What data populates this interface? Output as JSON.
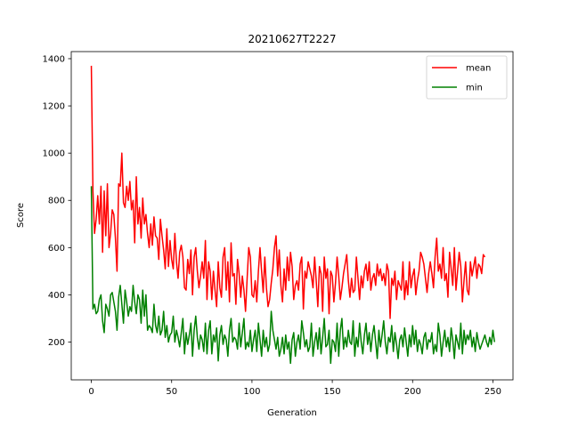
{
  "chart_data": {
    "type": "line",
    "title": "20210627T2227",
    "xlabel": "Generation",
    "ylabel": "Score",
    "xlim": [
      -12.5,
      262.5
    ],
    "ylim": [
      40,
      1430
    ],
    "xticks": [
      0,
      50,
      100,
      150,
      200,
      250
    ],
    "yticks": [
      200,
      400,
      600,
      800,
      1000,
      1200,
      1400
    ],
    "grid": false,
    "legend_position": "top-right",
    "series": [
      {
        "name": "mean",
        "color": "#ff0000",
        "values": [
          1370,
          840,
          660,
          720,
          820,
          700,
          860,
          580,
          840,
          650,
          870,
          600,
          660,
          760,
          740,
          640,
          500,
          870,
          860,
          1000,
          790,
          770,
          860,
          800,
          880,
          760,
          800,
          620,
          900,
          700,
          770,
          640,
          810,
          700,
          740,
          660,
          600,
          700,
          610,
          730,
          650,
          640,
          550,
          720,
          650,
          590,
          510,
          680,
          520,
          630,
          550,
          510,
          660,
          540,
          470,
          580,
          610,
          560,
          430,
          420,
          550,
          490,
          590,
          400,
          560,
          600,
          500,
          430,
          480,
          540,
          470,
          630,
          380,
          540,
          500,
          380,
          500,
          420,
          350,
          540,
          430,
          390,
          560,
          600,
          420,
          540,
          370,
          620,
          480,
          490,
          360,
          550,
          490,
          390,
          480,
          420,
          330,
          470,
          600,
          560,
          400,
          390,
          460,
          370,
          500,
          600,
          500,
          410,
          560,
          430,
          350,
          380,
          450,
          510,
          600,
          650,
          480,
          590,
          440,
          370,
          510,
          420,
          560,
          460,
          580,
          520,
          380,
          440,
          460,
          420,
          530,
          560,
          340,
          500,
          470,
          540,
          510,
          480,
          430,
          560,
          460,
          350,
          520,
          490,
          330,
          560,
          470,
          510,
          320,
          500,
          480,
          370,
          450,
          560,
          480,
          380,
          430,
          490,
          530,
          570,
          460,
          390,
          470,
          410,
          420,
          560,
          470,
          380,
          480,
          430,
          500,
          530,
          460,
          540,
          420,
          470,
          490,
          440,
          530,
          480,
          510,
          460,
          490,
          440,
          530,
          500,
          300,
          470,
          440,
          500,
          380,
          460,
          440,
          420,
          540,
          380,
          460,
          400,
          540,
          430,
          480,
          510,
          400,
          460,
          500,
          580,
          560,
          530,
          470,
          410,
          490,
          540,
          490,
          430,
          560,
          640,
          500,
          530,
          470,
          600,
          460,
          490,
          390,
          580,
          510,
          440,
          600,
          420,
          500,
          580,
          520,
          370,
          460,
          540,
          420,
          400,
          540,
          480,
          520,
          560,
          470,
          530,
          520,
          490,
          570,
          560
        ]
      },
      {
        "name": "min",
        "color": "#008000",
        "values": [
          860,
          340,
          360,
          320,
          330,
          380,
          400,
          290,
          240,
          360,
          340,
          310,
          400,
          410,
          370,
          330,
          250,
          390,
          440,
          360,
          280,
          420,
          370,
          310,
          350,
          330,
          440,
          370,
          320,
          400,
          380,
          280,
          420,
          310,
          400,
          250,
          270,
          260,
          240,
          360,
          270,
          240,
          310,
          230,
          250,
          330,
          220,
          270,
          200,
          230,
          240,
          310,
          200,
          250,
          220,
          180,
          240,
          300,
          150,
          240,
          190,
          230,
          280,
          140,
          250,
          310,
          220,
          170,
          230,
          210,
          160,
          280,
          150,
          250,
          290,
          150,
          230,
          200,
          260,
          120,
          230,
          270,
          190,
          230,
          210,
          140,
          250,
          300,
          200,
          220,
          210,
          170,
          280,
          180,
          240,
          300,
          170,
          200,
          180,
          250,
          160,
          210,
          250,
          160,
          280,
          210,
          140,
          250,
          180,
          220,
          160,
          190,
          330,
          250,
          210,
          170,
          220,
          140,
          170,
          220,
          150,
          230,
          170,
          200,
          110,
          210,
          240,
          140,
          200,
          230,
          170,
          290,
          240,
          180,
          210,
          160,
          180,
          280,
          140,
          200,
          240,
          170,
          260,
          150,
          220,
          300,
          180,
          190,
          250,
          110,
          210,
          200,
          160,
          280,
          140,
          250,
          300,
          170,
          220,
          180,
          250,
          200,
          190,
          290,
          140,
          220,
          180,
          280,
          200,
          150,
          230,
          280,
          190,
          240,
          160,
          230,
          270,
          200,
          130,
          250,
          180,
          230,
          290,
          200,
          150,
          220,
          200,
          270,
          160,
          240,
          190,
          130,
          210,
          230,
          180,
          260,
          200,
          140,
          230,
          180,
          270,
          190,
          250,
          160,
          210,
          190,
          150,
          220,
          240,
          170,
          210,
          200,
          240,
          150,
          190,
          160,
          280,
          230,
          140,
          200,
          250,
          180,
          220,
          160,
          260,
          210,
          130,
          230,
          200,
          170,
          280,
          150,
          250,
          190,
          230,
          210,
          250,
          180,
          220,
          160,
          240,
          200,
          170,
          190,
          210,
          230,
          200,
          180,
          220,
          190,
          250,
          200
        ]
      }
    ]
  }
}
